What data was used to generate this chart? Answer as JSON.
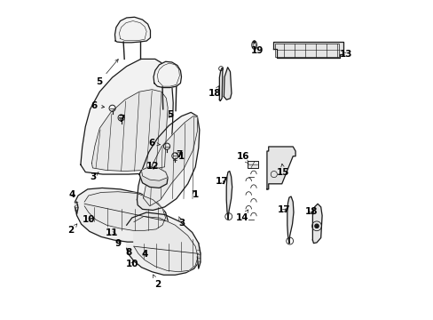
{
  "bg_color": "#ffffff",
  "line_color": "#1a1a1a",
  "figsize": [
    4.89,
    3.6
  ],
  "dpi": 100,
  "font_size": 7.5
}
